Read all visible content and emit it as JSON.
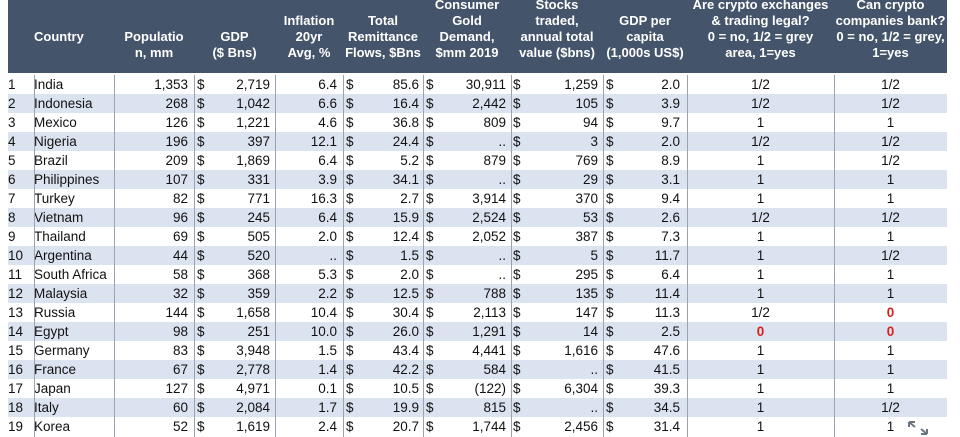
{
  "headers": {
    "country": "Country",
    "population": "Populatio\nn, mm",
    "gdp": "GDP\n($ Bns)",
    "inflation": "Inflation\n20yr\nAvg, %",
    "remittance": "Total\nRemittance\nFlows, $Bns",
    "gold": "Consumer\nGold\nDemand,\n$mm 2019",
    "stocks": "Stocks\ntraded,\nannual total\nvalue ($bns)",
    "gdp_pc": "GDP per\ncapita\n(1,000s US$)",
    "crypto_exchanges": "Are crypto exchanges\n& trading legal?\n0 = no, 1/2 = grey\narea, 1=yes",
    "crypto_banks": "Can crypto\ncompanies bank?\n0 = no, 1/2 = grey,\n1=yes"
  },
  "currency_symbol": "$",
  "rows": [
    {
      "rank": "1",
      "country": "India",
      "pop": "1,353",
      "gdp": "2,719",
      "infl": "6.4",
      "remit": "85.6",
      "gold": "30,911",
      "stocks": "1,259",
      "gdppc": "2.0",
      "ex": "1/2",
      "bank": "1/2"
    },
    {
      "rank": "2",
      "country": "Indonesia",
      "pop": "268",
      "gdp": "1,042",
      "infl": "6.6",
      "remit": "16.4",
      "gold": "2,442",
      "stocks": "105",
      "gdppc": "3.9",
      "ex": "1/2",
      "bank": "1/2"
    },
    {
      "rank": "3",
      "country": "Mexico",
      "pop": "126",
      "gdp": "1,221",
      "infl": "4.6",
      "remit": "36.8",
      "gold": "809",
      "stocks": "94",
      "gdppc": "9.7",
      "ex": "1",
      "bank": "1"
    },
    {
      "rank": "4",
      "country": "Nigeria",
      "pop": "196",
      "gdp": "397",
      "infl": "12.1",
      "remit": "24.4",
      "gold": "..",
      "stocks": "3",
      "gdppc": "2.0",
      "ex": "1/2",
      "bank": "1/2"
    },
    {
      "rank": "5",
      "country": "Brazil",
      "pop": "209",
      "gdp": "1,869",
      "infl": "6.4",
      "remit": "5.2",
      "gold": "879",
      "stocks": "769",
      "gdppc": "8.9",
      "ex": "1",
      "bank": "1/2"
    },
    {
      "rank": "6",
      "country": "Philippines",
      "pop": "107",
      "gdp": "331",
      "infl": "3.9",
      "remit": "34.1",
      "gold": "..",
      "stocks": "29",
      "gdppc": "3.1",
      "ex": "1",
      "bank": "1"
    },
    {
      "rank": "7",
      "country": "Turkey",
      "pop": "82",
      "gdp": "771",
      "infl": "16.3",
      "remit": "2.7",
      "gold": "3,914",
      "stocks": "370",
      "gdppc": "9.4",
      "ex": "1",
      "bank": "1"
    },
    {
      "rank": "8",
      "country": "Vietnam",
      "pop": "96",
      "gdp": "245",
      "infl": "6.4",
      "remit": "15.9",
      "gold": "2,524",
      "stocks": "53",
      "gdppc": "2.6",
      "ex": "1/2",
      "bank": "1/2"
    },
    {
      "rank": "9",
      "country": "Thailand",
      "pop": "69",
      "gdp": "505",
      "infl": "2.0",
      "remit": "12.4",
      "gold": "2,052",
      "stocks": "387",
      "gdppc": "7.3",
      "ex": "1",
      "bank": "1"
    },
    {
      "rank": "10",
      "country": "Argentina",
      "pop": "44",
      "gdp": "520",
      "infl": "..",
      "remit": "1.5",
      "gold": "..",
      "stocks": "5",
      "gdppc": "11.7",
      "ex": "1",
      "bank": "1/2"
    },
    {
      "rank": "11",
      "country": "South Africa",
      "pop": "58",
      "gdp": "368",
      "infl": "5.3",
      "remit": "2.0",
      "gold": "..",
      "stocks": "295",
      "gdppc": "6.4",
      "ex": "1",
      "bank": "1"
    },
    {
      "rank": "12",
      "country": "Malaysia",
      "pop": "32",
      "gdp": "359",
      "infl": "2.2",
      "remit": "12.5",
      "gold": "788",
      "stocks": "135",
      "gdppc": "11.4",
      "ex": "1",
      "bank": "1"
    },
    {
      "rank": "13",
      "country": "Russia",
      "pop": "144",
      "gdp": "1,658",
      "infl": "10.4",
      "remit": "30.4",
      "gold": "2,113",
      "stocks": "147",
      "gdppc": "11.3",
      "ex": "1/2",
      "bank": "0"
    },
    {
      "rank": "14",
      "country": "Egypt",
      "pop": "98",
      "gdp": "251",
      "infl": "10.0",
      "remit": "26.0",
      "gold": "1,291",
      "stocks": "14",
      "gdppc": "2.5",
      "ex": "0",
      "bank": "0"
    },
    {
      "rank": "15",
      "country": "Germany",
      "pop": "83",
      "gdp": "3,948",
      "infl": "1.5",
      "remit": "43.4",
      "gold": "4,441",
      "stocks": "1,616",
      "gdppc": "47.6",
      "ex": "1",
      "bank": "1"
    },
    {
      "rank": "16",
      "country": "France",
      "pop": "67",
      "gdp": "2,778",
      "infl": "1.4",
      "remit": "42.2",
      "gold": "584",
      "stocks": "..",
      "gdppc": "41.5",
      "ex": "1",
      "bank": "1"
    },
    {
      "rank": "17",
      "country": "Japan",
      "pop": "127",
      "gdp": "4,971",
      "infl": "0.1",
      "remit": "10.5",
      "gold": "(122)",
      "stocks": "6,304",
      "gdppc": "39.3",
      "ex": "1",
      "bank": "1"
    },
    {
      "rank": "18",
      "country": "Italy",
      "pop": "60",
      "gdp": "2,084",
      "infl": "1.7",
      "remit": "19.9",
      "gold": "815",
      "stocks": "..",
      "gdppc": "34.5",
      "ex": "1",
      "bank": "1/2"
    },
    {
      "rank": "19",
      "country": "Korea",
      "pop": "52",
      "gdp": "1,619",
      "infl": "2.4",
      "remit": "20.7",
      "gold": "1,744",
      "stocks": "2,456",
      "gdppc": "31.4",
      "ex": "1",
      "bank": "1"
    }
  ],
  "status_colors": {
    "zero": "#d42020",
    "header_bg": "#44546a",
    "stripe": "#dce3f0"
  },
  "icons": {
    "expand": "expand-icon"
  }
}
